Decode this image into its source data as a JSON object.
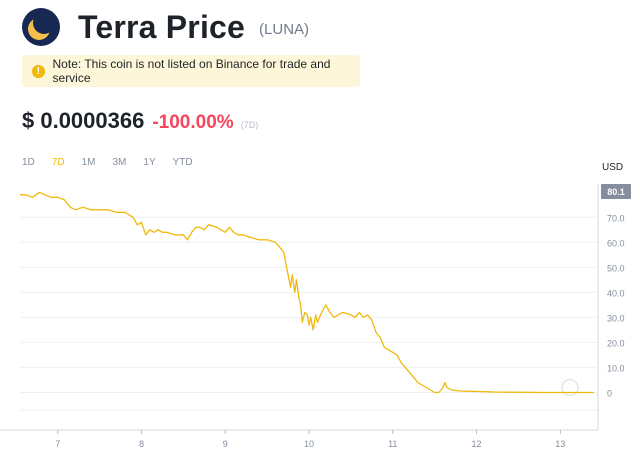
{
  "header": {
    "title": "Terra Price",
    "symbol": "(LUNA)",
    "logo": "terra-moon-logo",
    "logo_color": "#172852",
    "logo_accent": "#f3c14b"
  },
  "notice": {
    "icon": "info-icon",
    "text": "Note: This coin is not listed on Binance for trade and service",
    "background": "#fef6d8"
  },
  "price": {
    "value": "$ 0.0000366",
    "change": "-100.00%",
    "period": "(7D)",
    "change_color": "#f6465d"
  },
  "ranges": [
    {
      "label": "1D",
      "active": false
    },
    {
      "label": "7D",
      "active": true
    },
    {
      "label": "1M",
      "active": false
    },
    {
      "label": "3M",
      "active": false
    },
    {
      "label": "1Y",
      "active": false
    },
    {
      "label": "YTD",
      "active": false
    }
  ],
  "chart_data": {
    "type": "line",
    "currency_label": "USD",
    "current_value_badge": "80.1",
    "line_color": "#f0b90b",
    "grid": true,
    "y_axis_position": "right",
    "ylim": [
      -15,
      80.1
    ],
    "y_ticks": [
      "70.0",
      "60.0",
      "50.0",
      "40.0",
      "30.0",
      "20.0",
      "10.0",
      "0"
    ],
    "y_tick_values": [
      70,
      60,
      50,
      40,
      30,
      20,
      10,
      0
    ],
    "xlim": [
      6.55,
      13.45
    ],
    "x_ticks": [
      "7",
      "8",
      "9",
      "10",
      "11",
      "12",
      "13"
    ],
    "x_tick_values": [
      7,
      8,
      9,
      10,
      11,
      12,
      13
    ],
    "series": [
      {
        "x": [
          6.55,
          6.62,
          6.7,
          6.78,
          6.85,
          6.92,
          7.0,
          7.08,
          7.15,
          7.22,
          7.3,
          7.4,
          7.5,
          7.6,
          7.7,
          7.8,
          7.9,
          7.95,
          8.0,
          8.05,
          8.1,
          8.15,
          8.2,
          8.25,
          8.3,
          8.4,
          8.5,
          8.55,
          8.6,
          8.65,
          8.7,
          8.75,
          8.8,
          8.9,
          9.0,
          9.05,
          9.1,
          9.15,
          9.2,
          9.3,
          9.4,
          9.5,
          9.6,
          9.65,
          9.7,
          9.72,
          9.75,
          9.78,
          9.8,
          9.83,
          9.85,
          9.88,
          9.9,
          9.92,
          9.95,
          9.98,
          10.0,
          10.02,
          10.05,
          10.08,
          10.1,
          10.15,
          10.2,
          10.25,
          10.3,
          10.35,
          10.4,
          10.5,
          10.55,
          10.6,
          10.65,
          10.7,
          10.75,
          10.8,
          10.85,
          10.9,
          10.95,
          11.0,
          11.05,
          11.1,
          11.15,
          11.2,
          11.25,
          11.3,
          11.35,
          11.4,
          11.45,
          11.5,
          11.55,
          11.6,
          11.62,
          11.65,
          11.7,
          11.8,
          11.9,
          12.0,
          12.1,
          12.2,
          12.4,
          12.6,
          12.8,
          13.0,
          13.2,
          13.4
        ],
        "y": [
          79,
          79,
          78,
          80,
          79,
          78,
          78,
          77,
          74,
          73,
          74,
          73,
          73,
          73,
          72,
          72,
          70,
          67,
          68,
          63,
          65,
          64,
          65,
          64,
          64,
          63,
          63,
          61,
          64,
          66,
          66,
          65,
          67,
          66,
          64,
          66,
          64,
          63,
          63,
          62,
          61,
          61,
          60,
          58,
          56,
          52,
          47,
          42,
          47,
          40,
          45,
          38,
          35,
          28,
          32,
          31,
          27,
          30,
          25,
          31,
          28,
          32,
          35,
          32,
          30,
          31,
          32,
          31,
          30,
          32,
          30,
          31,
          29,
          24,
          22,
          18,
          17,
          16,
          15,
          12,
          10,
          8,
          6,
          4,
          3,
          2,
          1,
          0,
          0,
          2,
          4,
          2,
          1,
          0.6,
          0.5,
          0.4,
          0.3,
          0.2,
          0.1,
          0.05,
          0,
          0,
          0,
          0
        ]
      }
    ]
  }
}
